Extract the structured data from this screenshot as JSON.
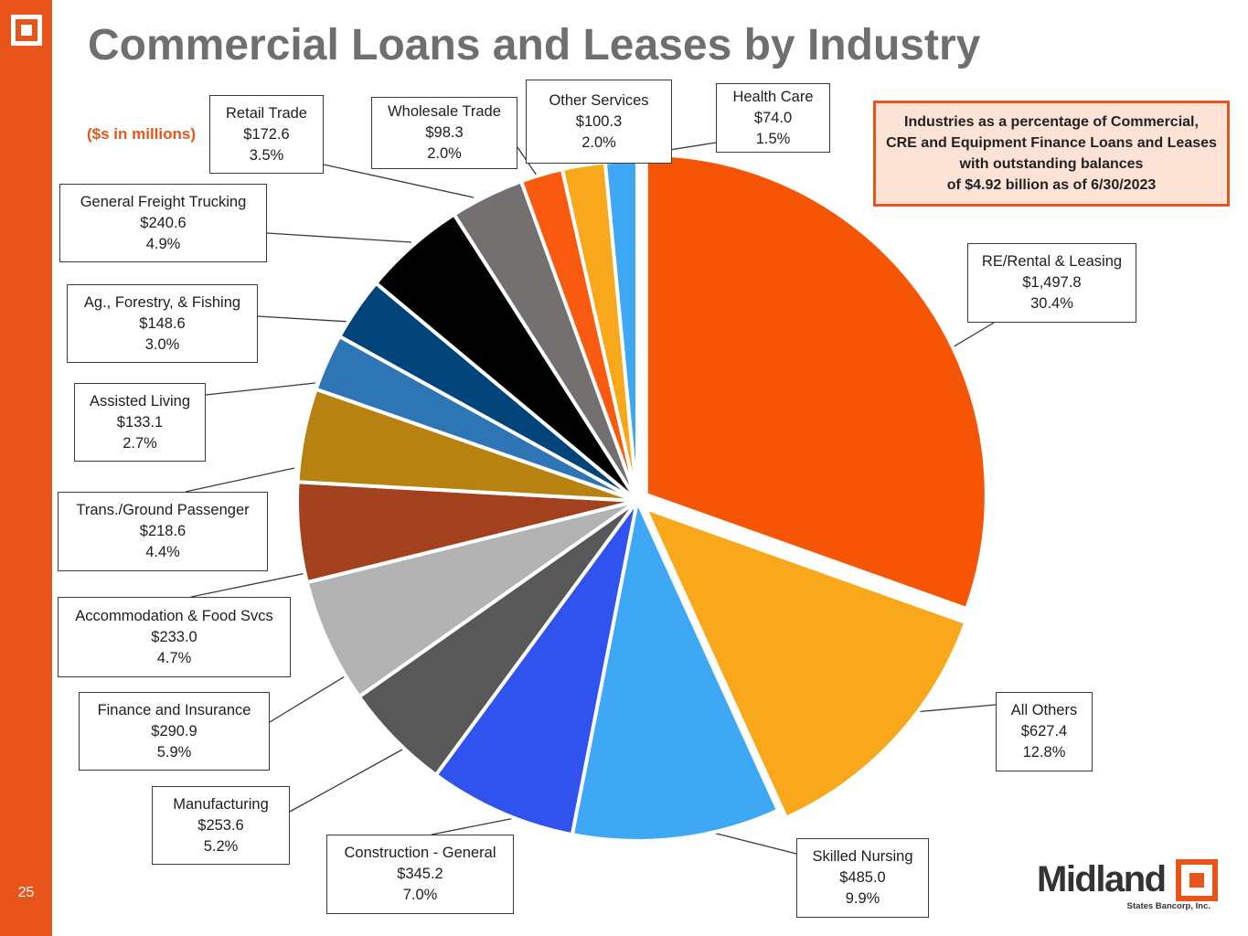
{
  "page": {
    "number": "25",
    "title": "Commercial Loans and Leases by Industry",
    "units_note": "($s in millions)",
    "callout_lines": [
      "Industries as a percentage of Commercial,",
      "CRE and Equipment Finance Loans and Leases",
      "with outstanding balances",
      "of $4.92 billion as of 6/30/2023"
    ],
    "brand": {
      "name": "Midland",
      "tagline": "States Bancorp, Inc."
    },
    "colors": {
      "accent": "#e8541a",
      "title": "#6f6f6f",
      "callout_fill": "#fde2d6"
    }
  },
  "chart_data": {
    "type": "pie",
    "title": "Commercial Loans and Leases by Industry",
    "units": "($s in millions)",
    "start": "12 o'clock",
    "direction": "clockwise",
    "exploded_slices": [
      "RE/Rental & Leasing",
      "All Others"
    ],
    "slices": [
      {
        "name": "RE/Rental & Leasing",
        "value": 1497.8,
        "value_label": "$1,497.8",
        "percent": 30.4,
        "percent_label": "30.4%",
        "color": "#f55504"
      },
      {
        "name": "All Others",
        "value": 627.4,
        "value_label": "$627.4",
        "percent": 12.8,
        "percent_label": "12.8%",
        "color": "#f9a81b"
      },
      {
        "name": "Skilled Nursing",
        "value": 485.0,
        "value_label": "$485.0",
        "percent": 9.9,
        "percent_label": "9.9%",
        "color": "#3fa8f5"
      },
      {
        "name": "Construction - General",
        "value": 345.2,
        "value_label": "$345.2",
        "percent": 7.0,
        "percent_label": "7.0%",
        "color": "#3052ef"
      },
      {
        "name": "Manufacturing",
        "value": 253.6,
        "value_label": "$253.6",
        "percent": 5.2,
        "percent_label": "5.2%",
        "color": "#585858"
      },
      {
        "name": "Finance and Insurance",
        "value": 290.9,
        "value_label": "$290.9",
        "percent": 5.9,
        "percent_label": "5.9%",
        "color": "#b3b3b3"
      },
      {
        "name": "Accommodation & Food Svcs",
        "value": 233.0,
        "value_label": "$233.0",
        "percent": 4.7,
        "percent_label": "4.7%",
        "color": "#a3411f"
      },
      {
        "name": "Trans./Ground Passenger",
        "value": 218.6,
        "value_label": "$218.6",
        "percent": 4.4,
        "percent_label": "4.4%",
        "color": "#b88211"
      },
      {
        "name": "Assisted Living",
        "value": 133.1,
        "value_label": "$133.1",
        "percent": 2.7,
        "percent_label": "2.7%",
        "color": "#2e75b6"
      },
      {
        "name": "Ag., Forestry, & Fishing",
        "value": 148.6,
        "value_label": "$148.6",
        "percent": 3.0,
        "percent_label": "3.0%",
        "color": "#00447a"
      },
      {
        "name": "General Freight Trucking",
        "value": 240.6,
        "value_label": "$240.6",
        "percent": 4.9,
        "percent_label": "4.9%",
        "color": "#000000"
      },
      {
        "name": "Retail Trade",
        "value": 172.6,
        "value_label": "$172.6",
        "percent": 3.5,
        "percent_label": "3.5%",
        "color": "#747070"
      },
      {
        "name": "Wholesale Trade",
        "value": 98.3,
        "value_label": "$98.3",
        "percent": 2.0,
        "percent_label": "2.0%",
        "color": "#fa5a0f"
      },
      {
        "name": "Other Services",
        "value": 100.3,
        "value_label": "$100.3",
        "percent": 2.0,
        "percent_label": "2.0%",
        "color": "#f9a81b"
      },
      {
        "name": "Health Care",
        "value": 74.0,
        "value_label": "$74.0",
        "percent": 1.5,
        "percent_label": "1.5%",
        "color": "#3fa8f5"
      }
    ]
  }
}
